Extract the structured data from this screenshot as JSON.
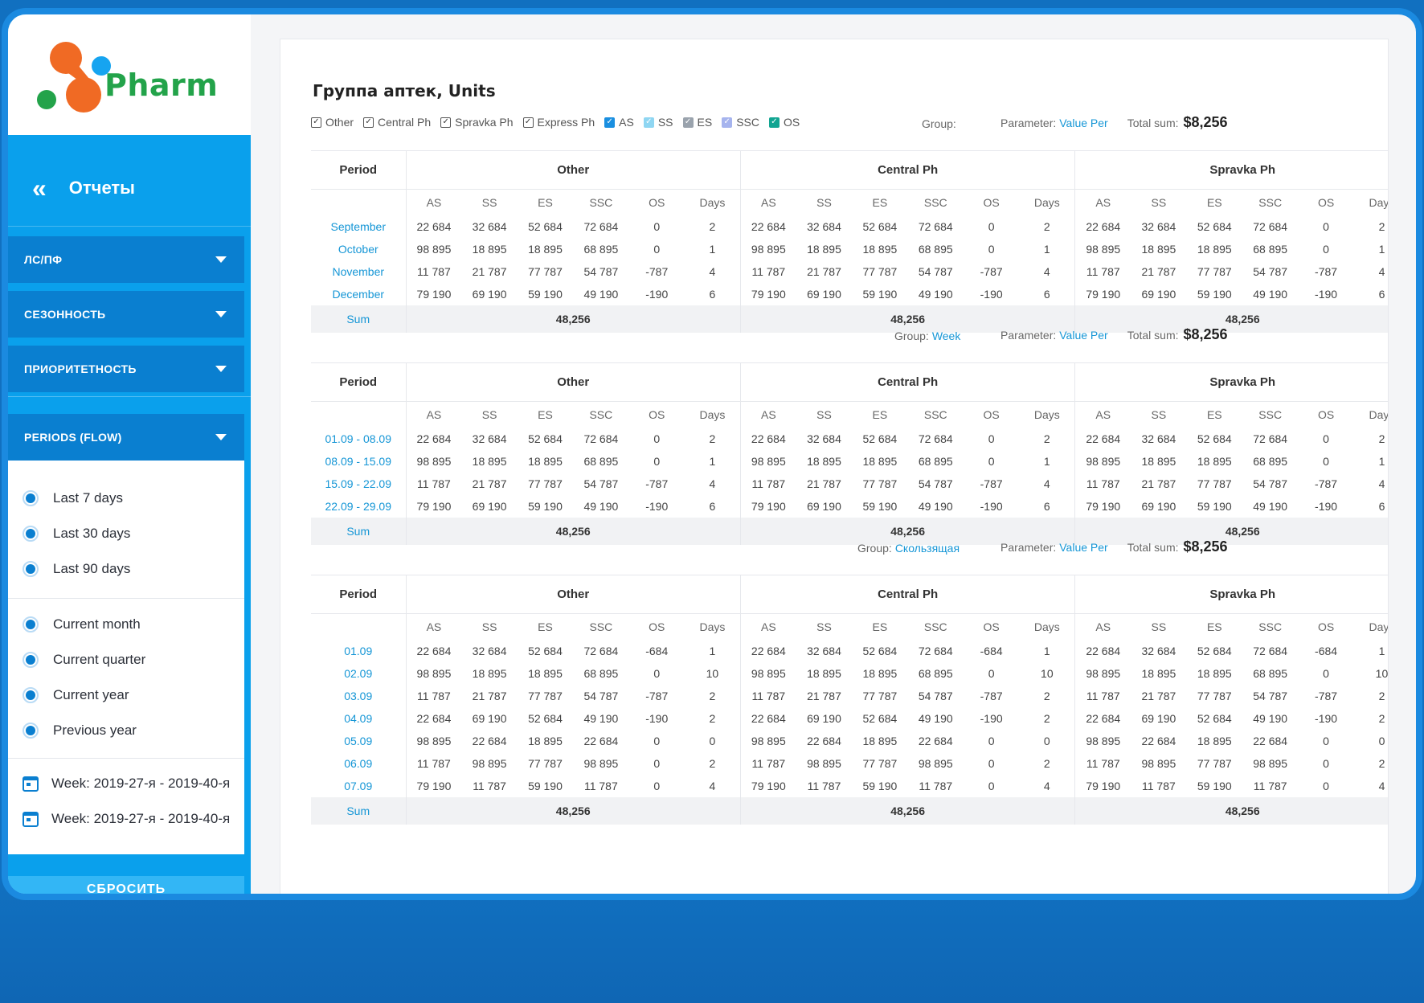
{
  "app": {
    "name": "Pharm"
  },
  "sidebar": {
    "header_title": "Отчеты",
    "dropdowns": [
      "ЛС/ПФ",
      "СЕЗОННОСТЬ",
      "ПРИОРИТЕТНОСТЬ"
    ],
    "periods_label": "PERIODS (FLOW)",
    "radio_group1": [
      "Last 7 days",
      "Last 30 days",
      "Last 90 days"
    ],
    "radio_group2": [
      "Current month",
      "Current quarter",
      "Current year",
      "Previous year"
    ],
    "weeks": [
      "Week: 2019-27-я - 2019-40-я",
      "Week: 2019-27-я - 2019-40-я"
    ],
    "reset_label": "СБРОСИТЬ"
  },
  "report": {
    "title": "Группа аптек, Units",
    "filters": [
      {
        "label": "Other",
        "color": "#ffffff",
        "border": "#555555",
        "checkcolor": "#333333"
      },
      {
        "label": "Central Ph",
        "color": "#ffffff",
        "border": "#555555",
        "checkcolor": "#333333"
      },
      {
        "label": "Spravka Ph",
        "color": "#ffffff",
        "border": "#555555",
        "checkcolor": "#333333"
      },
      {
        "label": "Express Ph",
        "color": "#ffffff",
        "border": "#555555",
        "checkcolor": "#333333"
      },
      {
        "label": "AS",
        "color": "#1a8fe0",
        "border": "#1a8fe0",
        "checkcolor": "#ffffff"
      },
      {
        "label": "SS",
        "color": "#8fd6f2",
        "border": "#8fd6f2",
        "checkcolor": "#ffffff"
      },
      {
        "label": "ES",
        "color": "#9aa3ad",
        "border": "#9aa3ad",
        "checkcolor": "#ffffff"
      },
      {
        "label": "SSC",
        "color": "#a6b4ee",
        "border": "#a6b4ee",
        "checkcolor": "#ffffff"
      },
      {
        "label": "OS",
        "color": "#12a592",
        "border": "#12a592",
        "checkcolor": "#ffffff"
      }
    ],
    "param_label": "Parameter:",
    "param_value": "Value Per",
    "total_label": "Total sum:",
    "total_value": "$8,256",
    "group_label": "Group:",
    "group_values": [
      "",
      "Week",
      "Скользящая"
    ],
    "period_header": "Period",
    "groups": [
      "Other",
      "Central Ph",
      "Spravka Ph"
    ],
    "subcols": [
      "AS",
      "SS",
      "ES",
      "SSC",
      "OS",
      "Days"
    ],
    "sum_label": "Sum",
    "sum_value": "48,256",
    "tables": [
      {
        "periods": [
          "September",
          "October",
          "November",
          "December"
        ],
        "rows": [
          [
            "22 684",
            "32 684",
            "52 684",
            "72 684",
            "0",
            "2"
          ],
          [
            "98 895",
            "18 895",
            "18 895",
            "68 895",
            "0",
            "1"
          ],
          [
            "11 787",
            "21 787",
            "77 787",
            "54 787",
            "-787",
            "4"
          ],
          [
            "79 190",
            "69 190",
            "59 190",
            "49 190",
            "-190",
            "6"
          ]
        ]
      },
      {
        "periods": [
          "01.09 - 08.09",
          "08.09 - 15.09",
          "15.09 - 22.09",
          "22.09 - 29.09"
        ],
        "rows": [
          [
            "22 684",
            "32 684",
            "52 684",
            "72 684",
            "0",
            "2"
          ],
          [
            "98 895",
            "18 895",
            "18 895",
            "68 895",
            "0",
            "1"
          ],
          [
            "11 787",
            "21 787",
            "77 787",
            "54 787",
            "-787",
            "4"
          ],
          [
            "79 190",
            "69 190",
            "59 190",
            "49 190",
            "-190",
            "6"
          ]
        ]
      },
      {
        "periods": [
          "01.09",
          "02.09",
          "03.09",
          "04.09",
          "05.09",
          "06.09",
          "07.09"
        ],
        "rows": [
          [
            "22 684",
            "32 684",
            "52 684",
            "72 684",
            "-684",
            "1"
          ],
          [
            "98 895",
            "18 895",
            "18 895",
            "68 895",
            "0",
            "10"
          ],
          [
            "11 787",
            "21 787",
            "77 787",
            "54 787",
            "-787",
            "2"
          ],
          [
            "22 684",
            "69 190",
            "52 684",
            "49 190",
            "-190",
            "2"
          ],
          [
            "98 895",
            "22 684",
            "18 895",
            "22 684",
            "0",
            "0"
          ],
          [
            "11 787",
            "98 895",
            "77 787",
            "98 895",
            "0",
            "2"
          ],
          [
            "79 190",
            "11 787",
            "59 190",
            "11 787",
            "0",
            "4"
          ]
        ]
      }
    ]
  }
}
